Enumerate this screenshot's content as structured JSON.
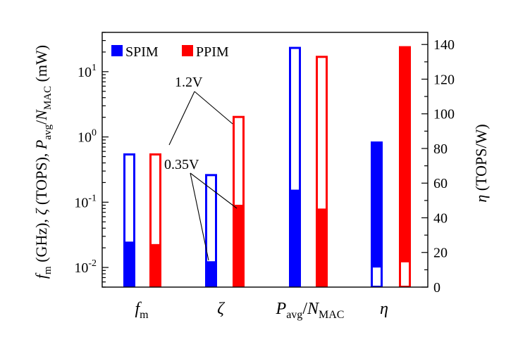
{
  "chart_data": {
    "type": "bar",
    "categories": [
      {
        "base": "f",
        "sub": "m"
      },
      {
        "base": "ζ",
        "sub": ""
      },
      {
        "base": "P",
        "sub": "avg",
        "tail": "/",
        "base2": "N",
        "sub2": "MAC"
      },
      {
        "base": "η",
        "sub": ""
      }
    ],
    "legend": [
      {
        "name": "SPIM",
        "color": "#0000ff"
      },
      {
        "name": "PPIM",
        "color": "#ff0000"
      }
    ],
    "legend_placement": "top-left",
    "left_axis": {
      "scale": "log",
      "ylim": [
        0.005,
        40
      ],
      "ticks": [
        {
          "value": 0.01,
          "base": "10",
          "exp": "-2"
        },
        {
          "value": 0.1,
          "base": "10",
          "exp": "-1"
        },
        {
          "value": 1,
          "base": "10",
          "exp": "0"
        },
        {
          "value": 10,
          "base": "10",
          "exp": "1"
        }
      ],
      "label": {
        "p1": "f",
        "p1sub": "m",
        "p2": " (GHz), ",
        "p3": "ζ",
        "p4": " (TOPS), ",
        "p5": "P",
        "p5sub": "avg",
        "p6": "/",
        "p7": "N",
        "p7sub": "MAC",
        "p8": " (mW)"
      }
    },
    "right_axis": {
      "scale": "linear",
      "ylim": [
        0,
        147
      ],
      "ticks": [
        0,
        20,
        40,
        60,
        80,
        100,
        120,
        140
      ],
      "label": {
        "p1": "η",
        "p2": " (TOPS/W)"
      }
    },
    "series": [
      {
        "name": "SPIM",
        "color": "#0000ff",
        "axis": [
          "left",
          "left",
          "left",
          "right"
        ],
        "low": [
          0.024,
          0.012,
          0.15,
          11.5
        ],
        "high": [
          0.56,
          0.27,
          24,
          84
        ]
      },
      {
        "name": "PPIM",
        "color": "#ff0000",
        "axis": [
          "left",
          "left",
          "left",
          "right"
        ],
        "low": [
          0.022,
          0.088,
          0.077,
          14.5
        ],
        "high": [
          0.56,
          2.1,
          17.5,
          139
        ]
      }
    ],
    "low_label": "0.35V",
    "high_label": "1.2V",
    "grid": false
  }
}
